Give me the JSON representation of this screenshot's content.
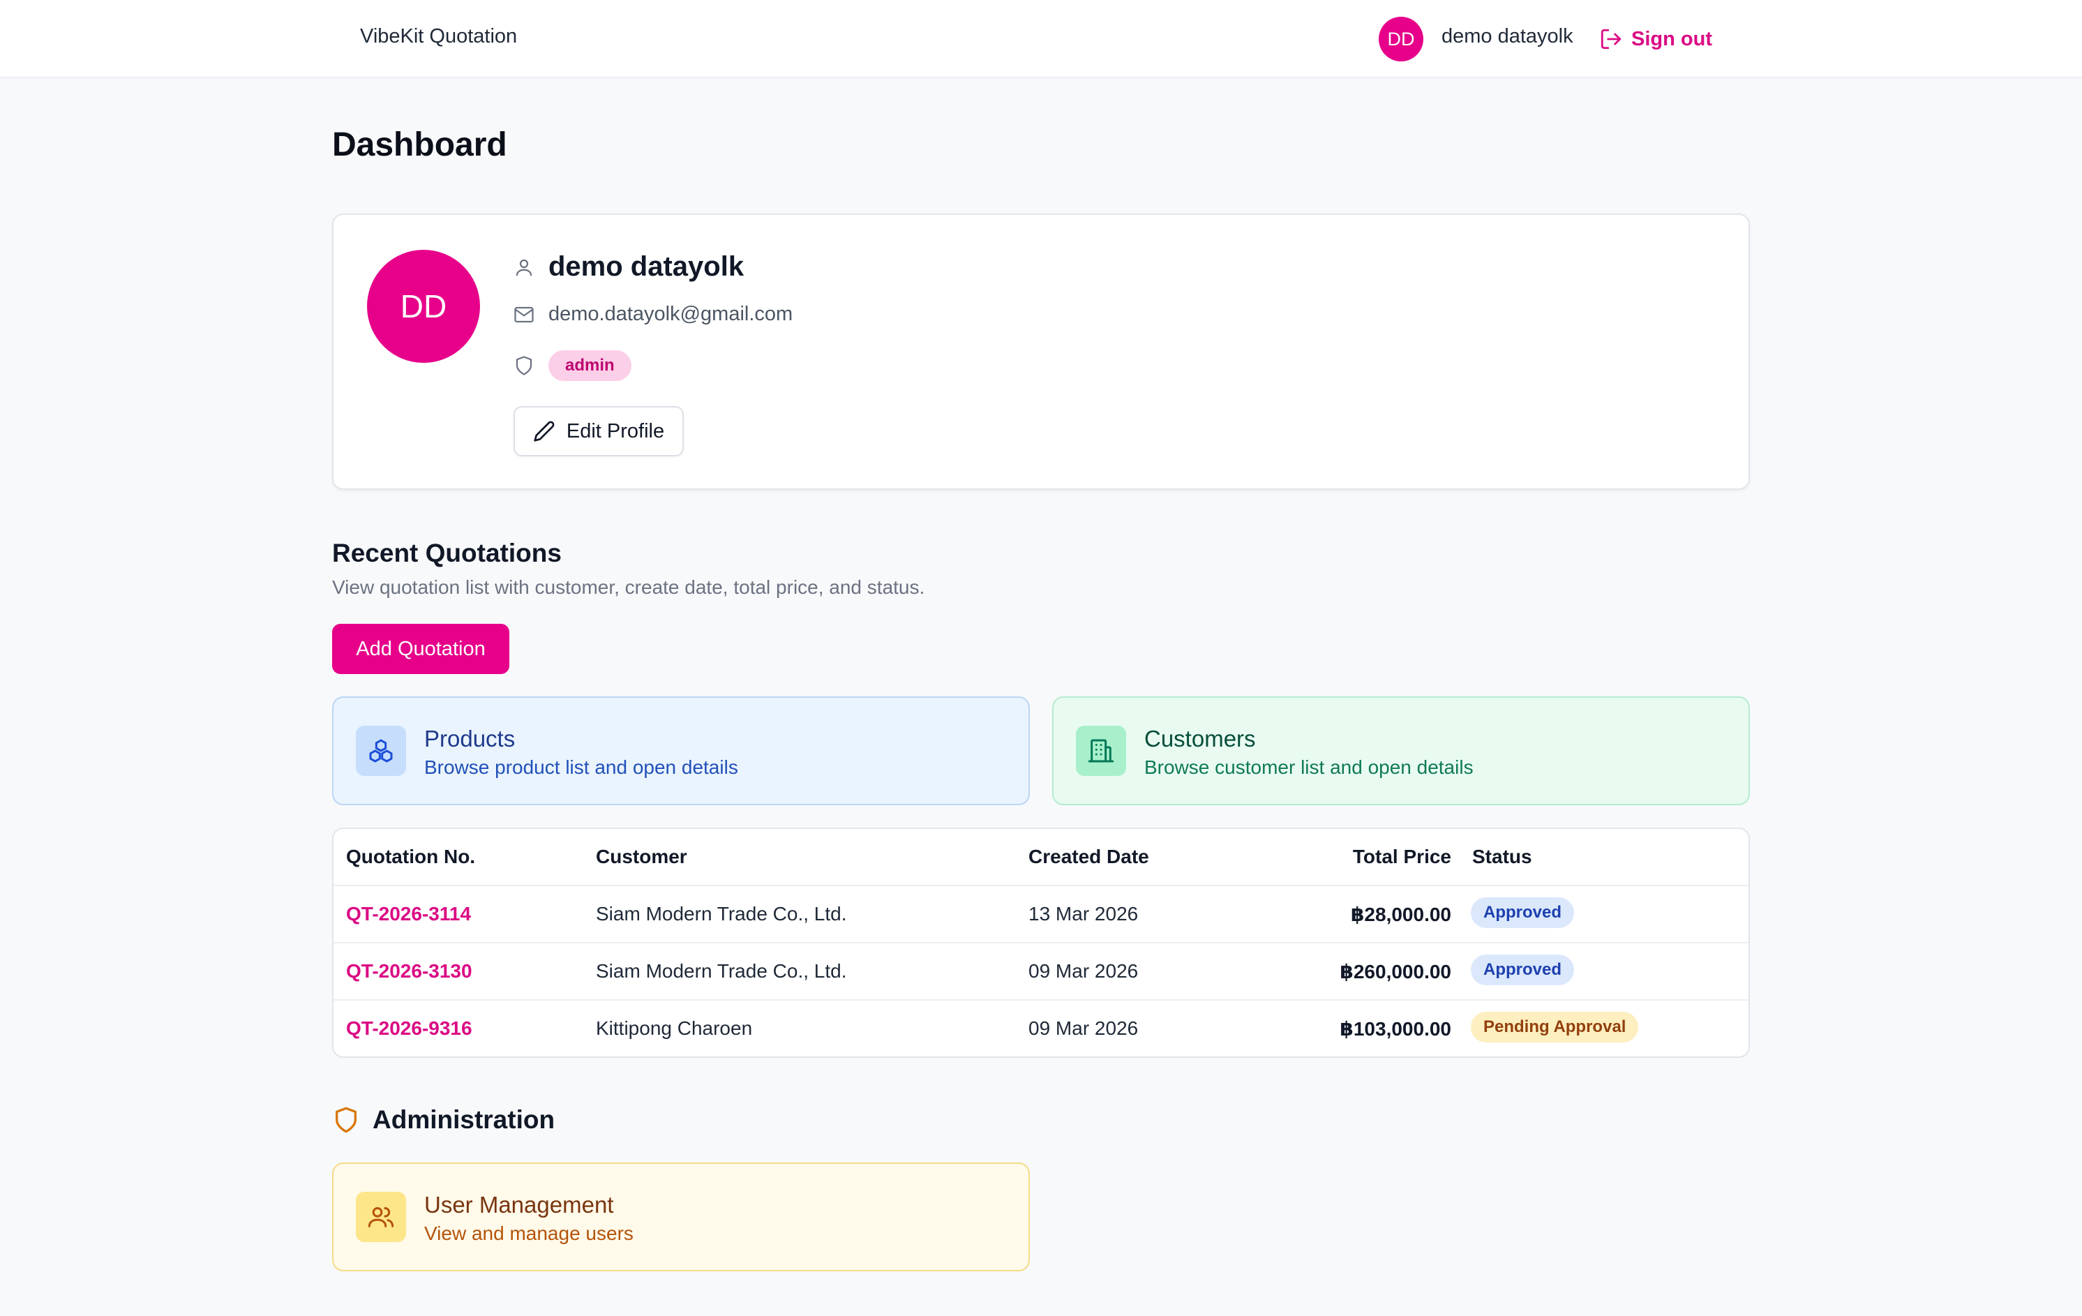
{
  "header": {
    "brand": "VibeKit Quotation",
    "avatar_initials": "DD",
    "user_name": "demo datayolk",
    "signout_label": "Sign out",
    "accent": "#e6008a"
  },
  "page": {
    "title": "Dashboard"
  },
  "profile": {
    "initials": "DD",
    "name": "demo datayolk",
    "email": "demo.datayolk@gmail.com",
    "role": "admin",
    "edit_label": "Edit Profile"
  },
  "quotations": {
    "title": "Recent Quotations",
    "subtitle": "View quotation list with customer, create date, total price, and status.",
    "add_label": "Add Quotation",
    "columns": [
      "Quotation No.",
      "Customer",
      "Created Date",
      "Total Price",
      "Status"
    ],
    "rows": [
      {
        "no": "QT-2026-3114",
        "customer": "Siam Modern Trade Co., Ltd.",
        "date": "13 Mar 2026",
        "total": "฿28,000.00",
        "status": "Approved"
      },
      {
        "no": "QT-2026-3130",
        "customer": "Siam Modern Trade Co., Ltd.",
        "date": "09 Mar 2026",
        "total": "฿260,000.00",
        "status": "Approved"
      },
      {
        "no": "QT-2026-9316",
        "customer": "Kittipong Charoen",
        "date": "09 Mar 2026",
        "total": "฿103,000.00",
        "status": "Pending Approval"
      }
    ]
  },
  "tiles": {
    "products": {
      "title": "Products",
      "desc": "Browse product list and open details",
      "icon": "boxes-icon"
    },
    "customers": {
      "title": "Customers",
      "desc": "Browse customer list and open details",
      "icon": "building-icon"
    }
  },
  "admin": {
    "title": "Administration",
    "users": {
      "title": "User Management",
      "desc": "View and manage users",
      "icon": "users-icon"
    }
  }
}
